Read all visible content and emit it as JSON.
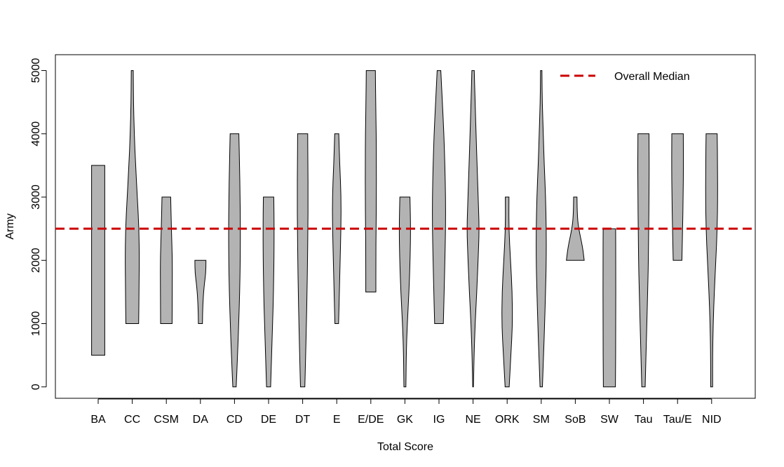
{
  "chart_data": {
    "type": "violin",
    "xlabel": "Total Score",
    "ylabel": "Army",
    "ylim": [
      -180,
      5250
    ],
    "yticks": [
      0,
      1000,
      2000,
      3000,
      4000,
      5000
    ],
    "ytick_labels": [
      "0",
      "1000",
      "2000",
      "3000",
      "4000",
      "5000"
    ],
    "reference_line": {
      "label": "Overall Median",
      "value": 2500,
      "color": "#cc0000",
      "style": "dashed"
    },
    "legend_position": "top-right",
    "fill_color": "#b3b3b3",
    "categories": [
      "BA",
      "CC",
      "CSM",
      "DA",
      "CD",
      "DE",
      "DT",
      "E",
      "E/DE",
      "GK",
      "IG",
      "NE",
      "ORK",
      "SM",
      "SoB",
      "SW",
      "Tau",
      "Tau/E",
      "NID"
    ],
    "violins": [
      {
        "label": "BA",
        "min": 500,
        "max": 3500,
        "profile": [
          [
            500,
            0.39
          ],
          [
            3500,
            0.39
          ]
        ]
      },
      {
        "label": "CC",
        "min": 1000,
        "max": 5000,
        "profile": [
          [
            1000,
            0.38
          ],
          [
            1500,
            0.4
          ],
          [
            2000,
            0.42
          ],
          [
            2500,
            0.4
          ],
          [
            3000,
            0.3
          ],
          [
            3500,
            0.2
          ],
          [
            4000,
            0.12
          ],
          [
            4500,
            0.07
          ],
          [
            5000,
            0.06
          ]
        ]
      },
      {
        "label": "CSM",
        "min": 1000,
        "max": 3000,
        "profile": [
          [
            1000,
            0.34
          ],
          [
            1500,
            0.35
          ],
          [
            2000,
            0.36
          ],
          [
            2500,
            0.3
          ],
          [
            3000,
            0.26
          ]
        ]
      },
      {
        "label": "DA",
        "min": 1000,
        "max": 2000,
        "profile": [
          [
            1000,
            0.12
          ],
          [
            1300,
            0.14
          ],
          [
            1600,
            0.22
          ],
          [
            1800,
            0.32
          ],
          [
            2000,
            0.33
          ]
        ]
      },
      {
        "label": "CD",
        "min": 0,
        "max": 4000,
        "profile": [
          [
            0,
            0.1
          ],
          [
            500,
            0.18
          ],
          [
            1000,
            0.25
          ],
          [
            1500,
            0.31
          ],
          [
            2000,
            0.34
          ],
          [
            2500,
            0.35
          ],
          [
            3000,
            0.33
          ],
          [
            3500,
            0.3
          ],
          [
            4000,
            0.26
          ]
        ]
      },
      {
        "label": "DE",
        "min": 0,
        "max": 3000,
        "profile": [
          [
            0,
            0.12
          ],
          [
            500,
            0.18
          ],
          [
            1000,
            0.24
          ],
          [
            1500,
            0.29
          ],
          [
            2000,
            0.32
          ],
          [
            2500,
            0.33
          ],
          [
            3000,
            0.31
          ]
        ]
      },
      {
        "label": "DT",
        "min": 0,
        "max": 4000,
        "profile": [
          [
            0,
            0.13
          ],
          [
            500,
            0.18
          ],
          [
            1000,
            0.22
          ],
          [
            1500,
            0.26
          ],
          [
            2000,
            0.29
          ],
          [
            2500,
            0.31
          ],
          [
            3000,
            0.32
          ],
          [
            3500,
            0.31
          ],
          [
            4000,
            0.3
          ]
        ]
      },
      {
        "label": "E",
        "min": 1000,
        "max": 4000,
        "profile": [
          [
            1000,
            0.11
          ],
          [
            1500,
            0.16
          ],
          [
            2000,
            0.2
          ],
          [
            2500,
            0.25
          ],
          [
            3000,
            0.26
          ],
          [
            3500,
            0.18
          ],
          [
            4000,
            0.12
          ]
        ]
      },
      {
        "label": "E/DE",
        "min": 1500,
        "max": 5000,
        "profile": [
          [
            1500,
            0.3
          ],
          [
            2000,
            0.3
          ],
          [
            2500,
            0.31
          ],
          [
            3000,
            0.33
          ],
          [
            3500,
            0.33
          ],
          [
            4000,
            0.32
          ],
          [
            4500,
            0.29
          ],
          [
            5000,
            0.27
          ]
        ]
      },
      {
        "label": "GK",
        "min": 0,
        "max": 3000,
        "profile": [
          [
            0,
            0.06
          ],
          [
            500,
            0.08
          ],
          [
            1000,
            0.14
          ],
          [
            1500,
            0.24
          ],
          [
            2000,
            0.31
          ],
          [
            2500,
            0.34
          ],
          [
            3000,
            0.3
          ]
        ]
      },
      {
        "label": "IG",
        "min": 1000,
        "max": 5000,
        "profile": [
          [
            1000,
            0.26
          ],
          [
            1500,
            0.31
          ],
          [
            2000,
            0.35
          ],
          [
            2500,
            0.39
          ],
          [
            3000,
            0.39
          ],
          [
            3500,
            0.35
          ],
          [
            4000,
            0.29
          ],
          [
            4500,
            0.2
          ],
          [
            5000,
            0.11
          ]
        ]
      },
      {
        "label": "NE",
        "min": 0,
        "max": 5000,
        "profile": [
          [
            0,
            0.02
          ],
          [
            500,
            0.06
          ],
          [
            1000,
            0.12
          ],
          [
            1500,
            0.22
          ],
          [
            2000,
            0.3
          ],
          [
            2500,
            0.37
          ],
          [
            3000,
            0.3
          ],
          [
            3500,
            0.24
          ],
          [
            4000,
            0.18
          ],
          [
            4500,
            0.12
          ],
          [
            5000,
            0.07
          ]
        ]
      },
      {
        "label": "ORK",
        "min": 0,
        "max": 3000,
        "profile": [
          [
            0,
            0.12
          ],
          [
            500,
            0.22
          ],
          [
            1000,
            0.32
          ],
          [
            1500,
            0.3
          ],
          [
            2000,
            0.2
          ],
          [
            2500,
            0.1
          ],
          [
            3000,
            0.11
          ]
        ]
      },
      {
        "label": "SM",
        "min": 0,
        "max": 5000,
        "profile": [
          [
            0,
            0.07
          ],
          [
            500,
            0.14
          ],
          [
            1000,
            0.2
          ],
          [
            1500,
            0.26
          ],
          [
            2000,
            0.3
          ],
          [
            2500,
            0.3
          ],
          [
            3000,
            0.26
          ],
          [
            3500,
            0.18
          ],
          [
            4000,
            0.12
          ],
          [
            4500,
            0.06
          ],
          [
            5000,
            0.04
          ]
        ]
      },
      {
        "label": "SoB",
        "min": 2000,
        "max": 3000,
        "profile": [
          [
            2000,
            0.53
          ],
          [
            2200,
            0.44
          ],
          [
            2500,
            0.2
          ],
          [
            2700,
            0.12
          ],
          [
            3000,
            0.1
          ]
        ]
      },
      {
        "label": "SW",
        "min": 0,
        "max": 2500,
        "profile": [
          [
            0,
            0.36
          ],
          [
            1000,
            0.38
          ],
          [
            2000,
            0.38
          ],
          [
            2500,
            0.37
          ]
        ]
      },
      {
        "label": "Tau",
        "min": 0,
        "max": 4000,
        "profile": [
          [
            0,
            0.1
          ],
          [
            500,
            0.15
          ],
          [
            1000,
            0.2
          ],
          [
            1500,
            0.25
          ],
          [
            2000,
            0.29
          ],
          [
            2500,
            0.31
          ],
          [
            3000,
            0.33
          ],
          [
            3500,
            0.34
          ],
          [
            4000,
            0.33
          ]
        ]
      },
      {
        "label": "Tau/E",
        "min": 2000,
        "max": 4000,
        "profile": [
          [
            2000,
            0.26
          ],
          [
            2500,
            0.3
          ],
          [
            3000,
            0.33
          ],
          [
            3500,
            0.35
          ],
          [
            4000,
            0.34
          ]
        ]
      },
      {
        "label": "NID",
        "min": 0,
        "max": 4000,
        "profile": [
          [
            0,
            0.06
          ],
          [
            500,
            0.06
          ],
          [
            1000,
            0.09
          ],
          [
            1500,
            0.16
          ],
          [
            2000,
            0.25
          ],
          [
            2500,
            0.33
          ],
          [
            3000,
            0.36
          ],
          [
            3500,
            0.35
          ],
          [
            4000,
            0.33
          ]
        ]
      }
    ]
  }
}
